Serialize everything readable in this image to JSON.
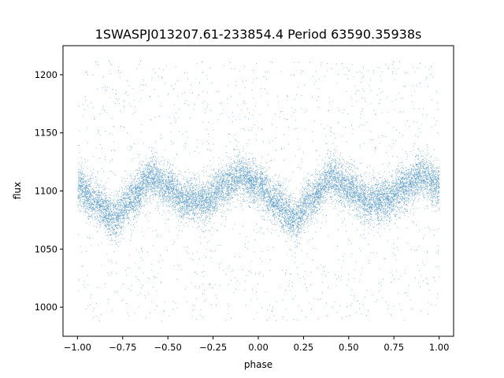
{
  "chart_data": {
    "type": "scatter",
    "title": "1SWASPJ013207.61-233854.4 Period 63590.35938s",
    "xlabel": "phase",
    "ylabel": "flux",
    "xlim": [
      -1.08,
      1.08
    ],
    "ylim": [
      975,
      1225
    ],
    "xticks": [
      -1.0,
      -0.75,
      -0.5,
      -0.25,
      0.0,
      0.25,
      0.5,
      0.75,
      1.0
    ],
    "xtick_labels": [
      "−1.00",
      "−0.75",
      "−0.50",
      "−0.25",
      "0.00",
      "0.25",
      "0.50",
      "0.75",
      "1.00"
    ],
    "yticks": [
      1000,
      1050,
      1100,
      1150,
      1200
    ],
    "ytick_labels": [
      "1000",
      "1050",
      "1100",
      "1150",
      "1200"
    ],
    "grid": false,
    "marker_color": "#1f77b4",
    "series": [
      {
        "phase_range": [
          -1.0,
          1.0
        ],
        "flux_range": [
          988,
          1212
        ],
        "light_curve": {
          "x": [
            0.0,
            0.1,
            0.2,
            0.3,
            0.4,
            0.5,
            0.6,
            0.7,
            0.8,
            0.9,
            1.0
          ],
          "y": [
            1105,
            1090,
            1076,
            1093,
            1112,
            1103,
            1092,
            1091,
            1103,
            1113,
            1105
          ]
        },
        "scatter_sigma": 9,
        "outlier_fraction": 0.12,
        "point_count": 14000
      }
    ]
  }
}
